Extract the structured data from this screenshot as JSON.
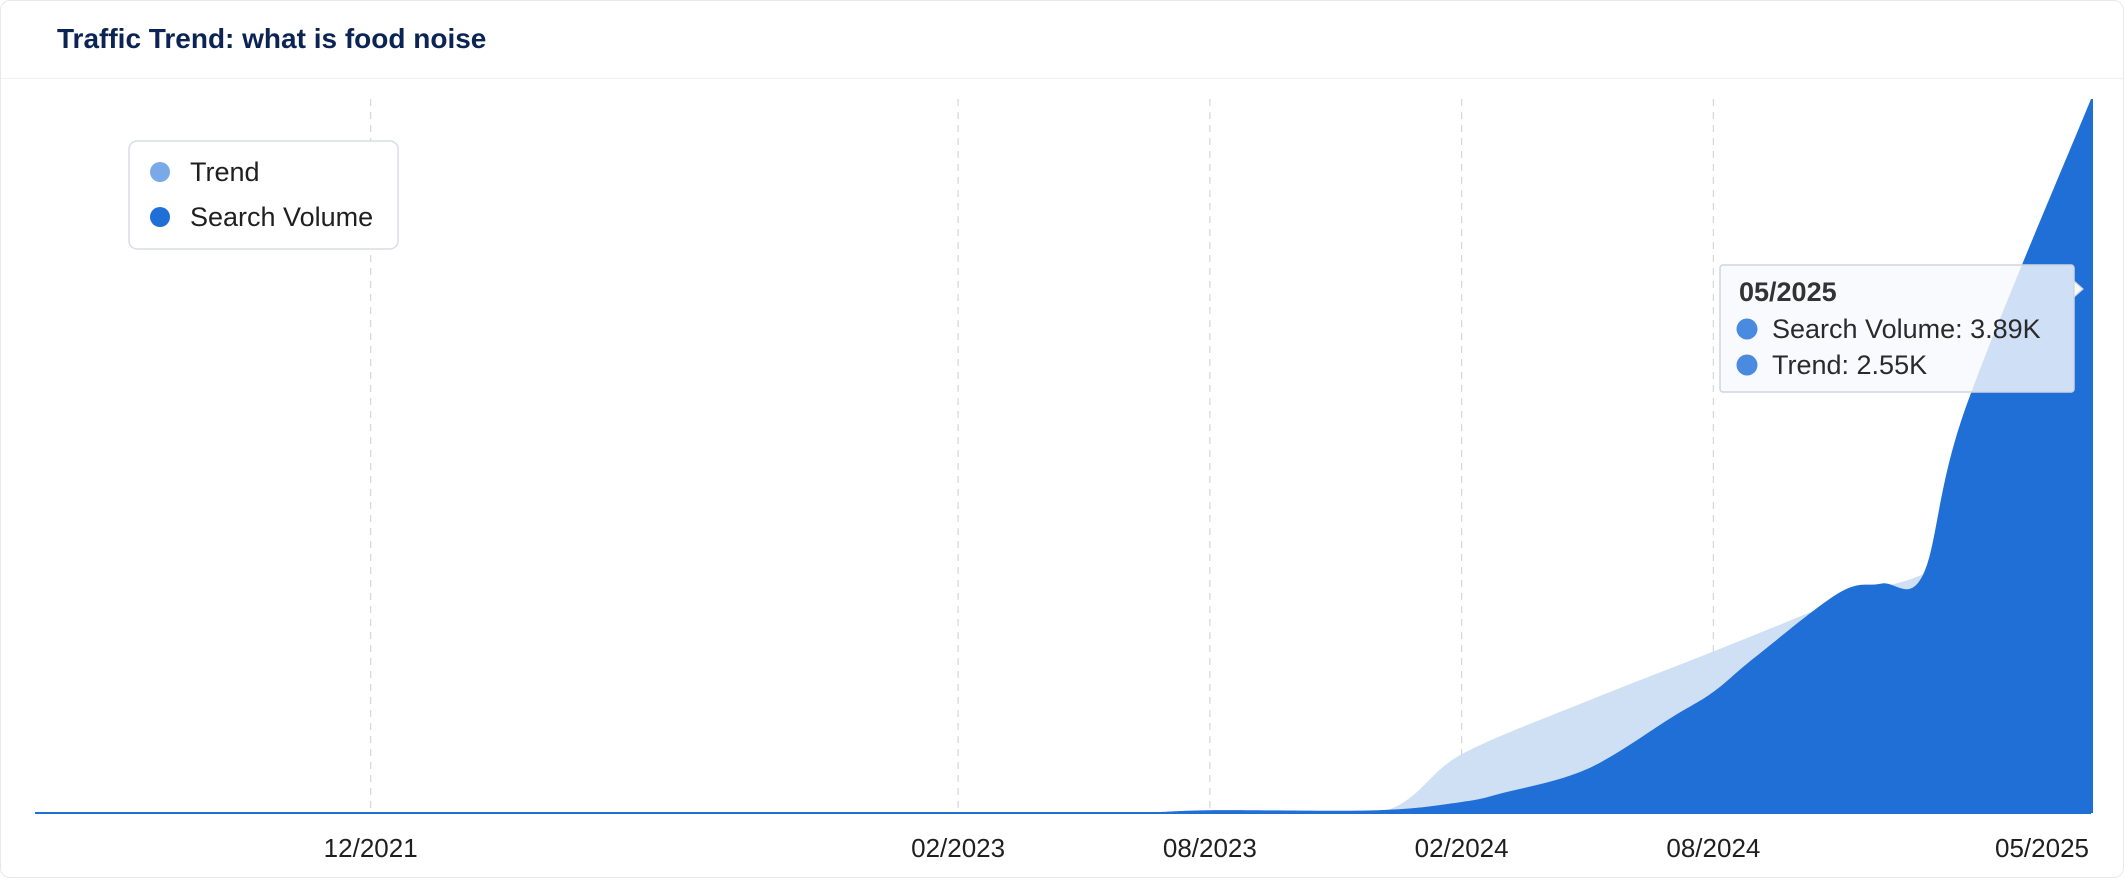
{
  "header": {
    "title": "Traffic Trend: what is food noise"
  },
  "chart_data": {
    "type": "area",
    "x": [
      "12/2021",
      "02/2023",
      "08/2023",
      "02/2024",
      "08/2024",
      "05/2025"
    ],
    "xlim": [
      "04/2021",
      "05/2025"
    ],
    "ylim": [
      0,
      3890
    ],
    "grid": {
      "x": true,
      "y": false
    },
    "legend": {
      "position": "top-left",
      "entries": [
        "Trend",
        "Search Volume"
      ]
    },
    "series": [
      {
        "name": "Trend",
        "color": "#cfe0f5",
        "legend_color": "#79a9e6",
        "points": [
          [
            "04/2021",
            0
          ],
          [
            "12/2021",
            0
          ],
          [
            "02/2023",
            0
          ],
          [
            "08/2023",
            0
          ],
          [
            "12/2023",
            0
          ],
          [
            "02/2024",
            320
          ],
          [
            "05/2024",
            610
          ],
          [
            "08/2024",
            880
          ],
          [
            "11/2024",
            1160
          ],
          [
            "02/2025",
            1460
          ],
          [
            "05/2025",
            2550
          ]
        ]
      },
      {
        "name": "Search Volume",
        "color": "#1f6fd6",
        "legend_color": "#1f6fd6",
        "points": [
          [
            "04/2021",
            0
          ],
          [
            "12/2021",
            0
          ],
          [
            "02/2023",
            0
          ],
          [
            "06/2023",
            0
          ],
          [
            "08/2023",
            15
          ],
          [
            "12/2023",
            15
          ],
          [
            "02/2024",
            60
          ],
          [
            "03/2024",
            110
          ],
          [
            "05/2024",
            240
          ],
          [
            "07/2024",
            520
          ],
          [
            "08/2024",
            660
          ],
          [
            "09/2024",
            850
          ],
          [
            "11/2024",
            1200
          ],
          [
            "12/2024",
            1250
          ],
          [
            "01/2025",
            1300
          ],
          [
            "02/2025",
            2200
          ],
          [
            "05/2025",
            3890
          ]
        ]
      }
    ],
    "tooltip": {
      "title": "05/2025",
      "rows": [
        {
          "label": "Search Volume: 3.89K",
          "color": "#4a8be0"
        },
        {
          "label": "Trend: 2.55K",
          "color": "#4a8be0"
        }
      ]
    }
  }
}
